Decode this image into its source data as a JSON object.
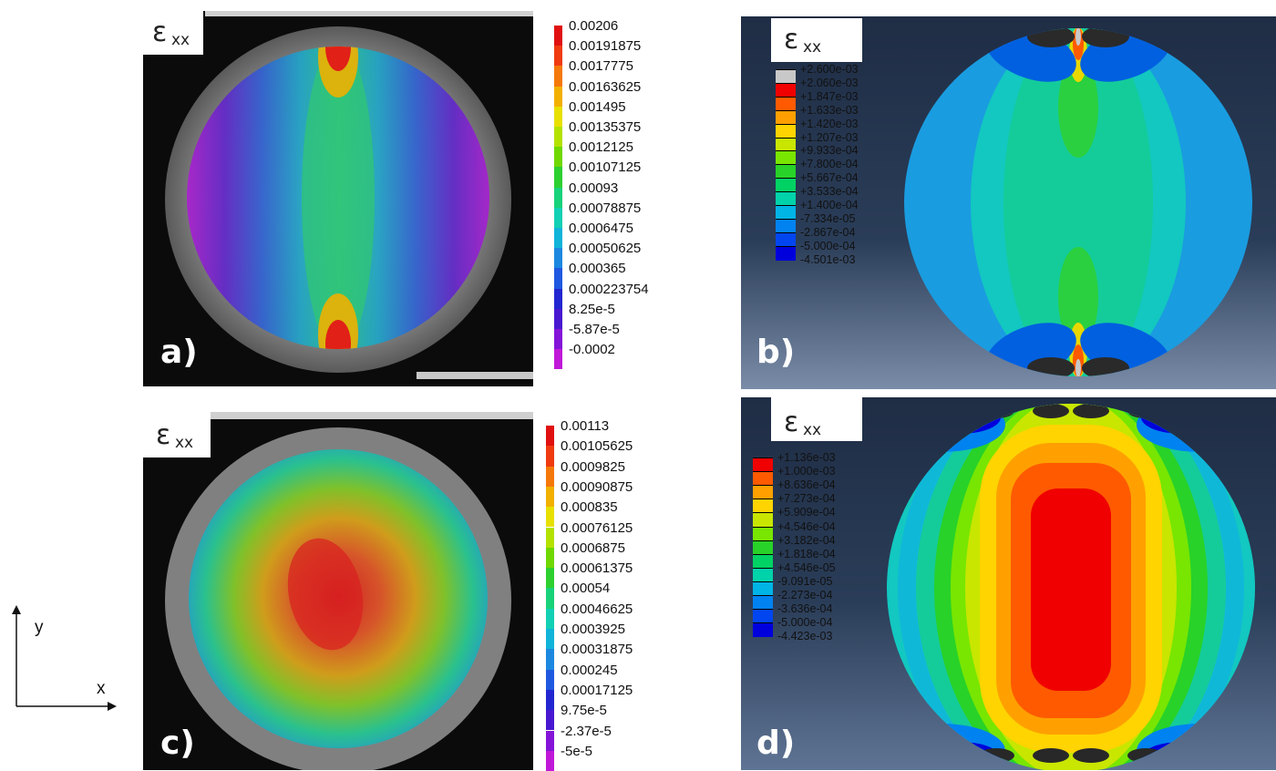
{
  "panels": {
    "a": {
      "label": "a)",
      "symbol": "ε",
      "subscript": "xx"
    },
    "b": {
      "label": "b)",
      "symbol": "ε",
      "subscript": "xx"
    },
    "c": {
      "label": "c)",
      "symbol": "ε",
      "subscript": "xx"
    },
    "d": {
      "label": "d)",
      "symbol": "ε",
      "subscript": "xx"
    }
  },
  "legend_a": {
    "values": [
      "0.00206",
      "0.00191875",
      "0.0017775",
      "0.00163625",
      "0.001495",
      "0.00135375",
      "0.0012125",
      "0.00107125",
      "0.00093",
      "0.00078875",
      "0.0006475",
      "0.00050625",
      "0.000365",
      "0.000223754",
      "8.25e-5",
      "-5.87e-5",
      "-0.0002"
    ],
    "colors": [
      "#e01010",
      "#f03a10",
      "#f5780a",
      "#f2b000",
      "#e8e000",
      "#b4e200",
      "#70d800",
      "#2ed030",
      "#18d27a",
      "#12d0b4",
      "#10b4d8",
      "#1c88e0",
      "#1f58e0",
      "#2226d0",
      "#4818d0",
      "#8414d8",
      "#c018d8"
    ]
  },
  "legend_c": {
    "values": [
      "0.00113",
      "0.00105625",
      "0.0009825",
      "0.00090875",
      "0.000835",
      "0.00076125",
      "0.0006875",
      "0.00061375",
      "0.00054",
      "0.00046625",
      "0.0003925",
      "0.00031875",
      "0.000245",
      "0.00017125",
      "9.75e-5",
      "-2.37e-5",
      "-5e-5"
    ],
    "colors": [
      "#e01010",
      "#f03a10",
      "#f5780a",
      "#f2b000",
      "#e8e000",
      "#b4e200",
      "#70d800",
      "#2ed030",
      "#18d27a",
      "#12d0b4",
      "#10b4d8",
      "#1c88e0",
      "#1f58e0",
      "#2226d0",
      "#4818d0",
      "#8414d8",
      "#c018d8"
    ]
  },
  "legend_b": {
    "values": [
      "+2.600e-03",
      "+2.060e-03",
      "+1.847e-03",
      "+1.633e-03",
      "+1.420e-03",
      "+1.207e-03",
      "+9.933e-04",
      "+7.800e-04",
      "+5.667e-04",
      "+3.533e-04",
      "+1.400e-04",
      "-7.334e-05",
      "-2.867e-04",
      "-5.000e-04",
      "-4.501e-03"
    ],
    "colors": [
      "#c8c8c8",
      "#f00000",
      "#ff5a00",
      "#ffa000",
      "#ffd400",
      "#c8e600",
      "#78e600",
      "#28d228",
      "#00d264",
      "#00d2aa",
      "#00b4e6",
      "#0082f0",
      "#0046f0",
      "#0000dc",
      "#282828"
    ]
  },
  "legend_d": {
    "values": [
      "+1.136e-03",
      "+1.000e-03",
      "+8.636e-04",
      "+7.273e-04",
      "+5.909e-04",
      "+4.546e-04",
      "+3.182e-04",
      "+1.818e-04",
      "+4.546e-05",
      "-9.091e-05",
      "-2.273e-04",
      "-3.636e-04",
      "-5.000e-04",
      "-4.423e-03"
    ],
    "colors": [
      "#f00000",
      "#ff5a00",
      "#ffa000",
      "#ffd400",
      "#c8e600",
      "#78e600",
      "#28d228",
      "#00d264",
      "#00d2aa",
      "#00b4e6",
      "#0082f0",
      "#0046f0",
      "#0000dc",
      "#282828"
    ]
  },
  "axes": {
    "y": "y",
    "x": "x"
  }
}
